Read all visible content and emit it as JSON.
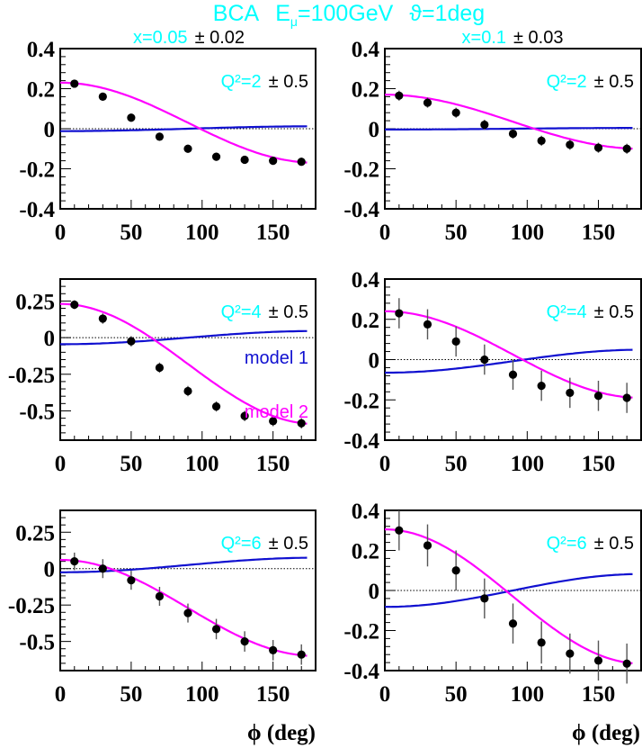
{
  "figure": {
    "title": "BCA  Eμ=100GeV  ϑ=1deg",
    "title_parts": {
      "a": "BCA",
      "b": "E",
      "b_sub": "μ",
      "c": "=100GeV",
      "d": "ϑ=1deg"
    },
    "column_headers": [
      {
        "label": "x=0.05",
        "err": "± 0.02"
      },
      {
        "label": "x=0.1",
        "err": "± 0.03"
      }
    ],
    "xlabel": "ϕ (deg)",
    "legend": {
      "model1": "model 1",
      "model2": "model 2"
    },
    "colors": {
      "title": "#00ffff",
      "model1": "#1010d0",
      "model2": "#ff00ff",
      "data": "#000000",
      "frame": "#000000"
    }
  },
  "chart_data": [
    {
      "type": "scatter",
      "title": "x=0.05 ± 0.02, Q²=2 ± 0.5",
      "panel_label": "Q²=2",
      "panel_err": "± 0.5",
      "xlabel": "",
      "ylabel": "",
      "xlim": [
        0,
        180
      ],
      "ylim": [
        -0.4,
        0.4
      ],
      "xticks": [
        0,
        50,
        100,
        150
      ],
      "yticks": [
        -0.4,
        -0.2,
        0,
        0.2,
        0.4
      ],
      "ytick_labels": [
        "-0.4",
        "-0.2",
        "0",
        "0.2",
        "0.4"
      ],
      "x": [
        10,
        30,
        50,
        70,
        90,
        110,
        130,
        150,
        170
      ],
      "series": [
        {
          "name": "data",
          "values": [
            0.225,
            0.16,
            0.055,
            -0.04,
            -0.1,
            -0.14,
            -0.155,
            -0.16,
            -0.165
          ],
          "errors": [
            0.015,
            0.02,
            0.02,
            0.02,
            0.02,
            0.02,
            0.02,
            0.02,
            0.02
          ]
        },
        {
          "name": "model 1",
          "kind": "line",
          "a": 0.0,
          "b": -0.012
        },
        {
          "name": "model 2",
          "kind": "line",
          "a": 0.03,
          "b": 0.2
        }
      ]
    },
    {
      "type": "scatter",
      "title": "x=0.1 ± 0.03, Q²=2 ± 0.5",
      "panel_label": "Q²=2",
      "panel_err": "± 0.5",
      "xlim": [
        0,
        180
      ],
      "ylim": [
        -0.4,
        0.4
      ],
      "xticks": [
        0,
        50,
        100,
        150
      ],
      "yticks": [
        -0.4,
        -0.2,
        0,
        0.2,
        0.4
      ],
      "ytick_labels": [
        "-0.4",
        "-0.2",
        "0",
        "0.2",
        "0.4"
      ],
      "x": [
        10,
        30,
        50,
        70,
        90,
        110,
        130,
        150,
        170
      ],
      "series": [
        {
          "name": "data",
          "values": [
            0.165,
            0.13,
            0.08,
            0.02,
            -0.025,
            -0.06,
            -0.08,
            -0.095,
            -0.1
          ],
          "errors": [
            0.025,
            0.025,
            0.025,
            0.025,
            0.025,
            0.025,
            0.025,
            0.025,
            0.025
          ]
        },
        {
          "name": "model 1",
          "kind": "line",
          "a": 0.0,
          "b": -0.004
        },
        {
          "name": "model 2",
          "kind": "line",
          "a": 0.035,
          "b": 0.135
        }
      ]
    },
    {
      "type": "scatter",
      "title": "x=0.05 ± 0.02, Q²=4 ± 0.5",
      "panel_label": "Q²=4",
      "panel_err": "± 0.5",
      "xlim": [
        0,
        180
      ],
      "ylim": [
        -0.7,
        0.4
      ],
      "xticks": [
        0,
        50,
        100,
        150
      ],
      "yticks": [
        -0.5,
        -0.25,
        0,
        0.25
      ],
      "ytick_labels": [
        "-0.5",
        "-0.25",
        "0",
        "0.25"
      ],
      "x": [
        10,
        30,
        50,
        70,
        90,
        110,
        130,
        150,
        170
      ],
      "series": [
        {
          "name": "data",
          "values": [
            0.225,
            0.13,
            -0.025,
            -0.205,
            -0.365,
            -0.47,
            -0.535,
            -0.57,
            -0.585
          ],
          "errors": [
            0.03,
            0.035,
            0.035,
            0.035,
            0.035,
            0.035,
            0.035,
            0.035,
            0.035
          ]
        },
        {
          "name": "model 1",
          "kind": "line",
          "a": 0.0,
          "b": -0.045
        },
        {
          "name": "model 2",
          "kind": "line",
          "a": -0.18,
          "b": 0.41
        }
      ]
    },
    {
      "type": "scatter",
      "title": "x=0.1 ± 0.03, Q²=4 ± 0.5",
      "panel_label": "Q²=4",
      "panel_err": "± 0.5",
      "xlim": [
        0,
        180
      ],
      "ylim": [
        -0.4,
        0.4
      ],
      "xticks": [
        0,
        50,
        100,
        150
      ],
      "yticks": [
        -0.4,
        -0.2,
        0,
        0.2,
        0.4
      ],
      "ytick_labels": [
        "-0.4",
        "-0.2",
        "0",
        "0.2",
        "0.4"
      ],
      "x": [
        10,
        30,
        50,
        70,
        90,
        110,
        130,
        150,
        170
      ],
      "series": [
        {
          "name": "data",
          "values": [
            0.23,
            0.175,
            0.09,
            0.0,
            -0.075,
            -0.13,
            -0.165,
            -0.18,
            -0.19
          ],
          "errors": [
            0.075,
            0.075,
            0.075,
            0.075,
            0.075,
            0.075,
            0.075,
            0.075,
            0.075
          ]
        },
        {
          "name": "model 1",
          "kind": "line",
          "a": -0.008,
          "b": -0.057
        },
        {
          "name": "model 2",
          "kind": "line",
          "a": 0.025,
          "b": 0.215
        }
      ]
    },
    {
      "type": "scatter",
      "title": "x=0.05 ± 0.02, Q²=6 ± 0.5",
      "panel_label": "Q²=6",
      "panel_err": "± 0.5",
      "xlim": [
        0,
        180
      ],
      "ylim": [
        -0.7,
        0.4
      ],
      "xticks": [
        0,
        50,
        100,
        150
      ],
      "yticks": [
        -0.5,
        -0.25,
        0,
        0.25
      ],
      "ytick_labels": [
        "-0.5",
        "-0.25",
        "0",
        "0.25"
      ],
      "x": [
        10,
        30,
        50,
        70,
        90,
        110,
        130,
        150,
        170
      ],
      "series": [
        {
          "name": "data",
          "values": [
            0.05,
            0.0,
            -0.08,
            -0.19,
            -0.305,
            -0.415,
            -0.5,
            -0.56,
            -0.59
          ],
          "errors": [
            0.06,
            0.065,
            0.065,
            0.065,
            0.065,
            0.07,
            0.07,
            0.07,
            0.07
          ]
        },
        {
          "name": "model 1",
          "kind": "line",
          "a": 0.025,
          "b": -0.05
        },
        {
          "name": "model 2",
          "kind": "line",
          "a": -0.27,
          "b": 0.33
        }
      ]
    },
    {
      "type": "scatter",
      "title": "x=0.1 ± 0.03, Q²=6 ± 0.5",
      "panel_label": "Q²=6",
      "panel_err": "± 0.5",
      "xlim": [
        0,
        180
      ],
      "ylim": [
        -0.4,
        0.4
      ],
      "xticks": [
        0,
        50,
        100,
        150
      ],
      "yticks": [
        -0.4,
        -0.2,
        0,
        0.2,
        0.4
      ],
      "ytick_labels": [
        "-0.4",
        "-0.2",
        "0",
        "0.2",
        "0.4"
      ],
      "x": [
        10,
        30,
        50,
        70,
        90,
        110,
        130,
        150,
        170
      ],
      "series": [
        {
          "name": "data",
          "values": [
            0.3,
            0.225,
            0.1,
            -0.04,
            -0.165,
            -0.26,
            -0.315,
            -0.35,
            -0.365
          ],
          "errors": [
            0.1,
            0.105,
            0.1,
            0.1,
            0.1,
            0.105,
            0.1,
            0.1,
            0.1
          ]
        },
        {
          "name": "model 1",
          "kind": "line",
          "a": 0.0,
          "b": -0.082
        },
        {
          "name": "model 2",
          "kind": "line",
          "a": -0.03,
          "b": 0.335
        }
      ]
    }
  ]
}
